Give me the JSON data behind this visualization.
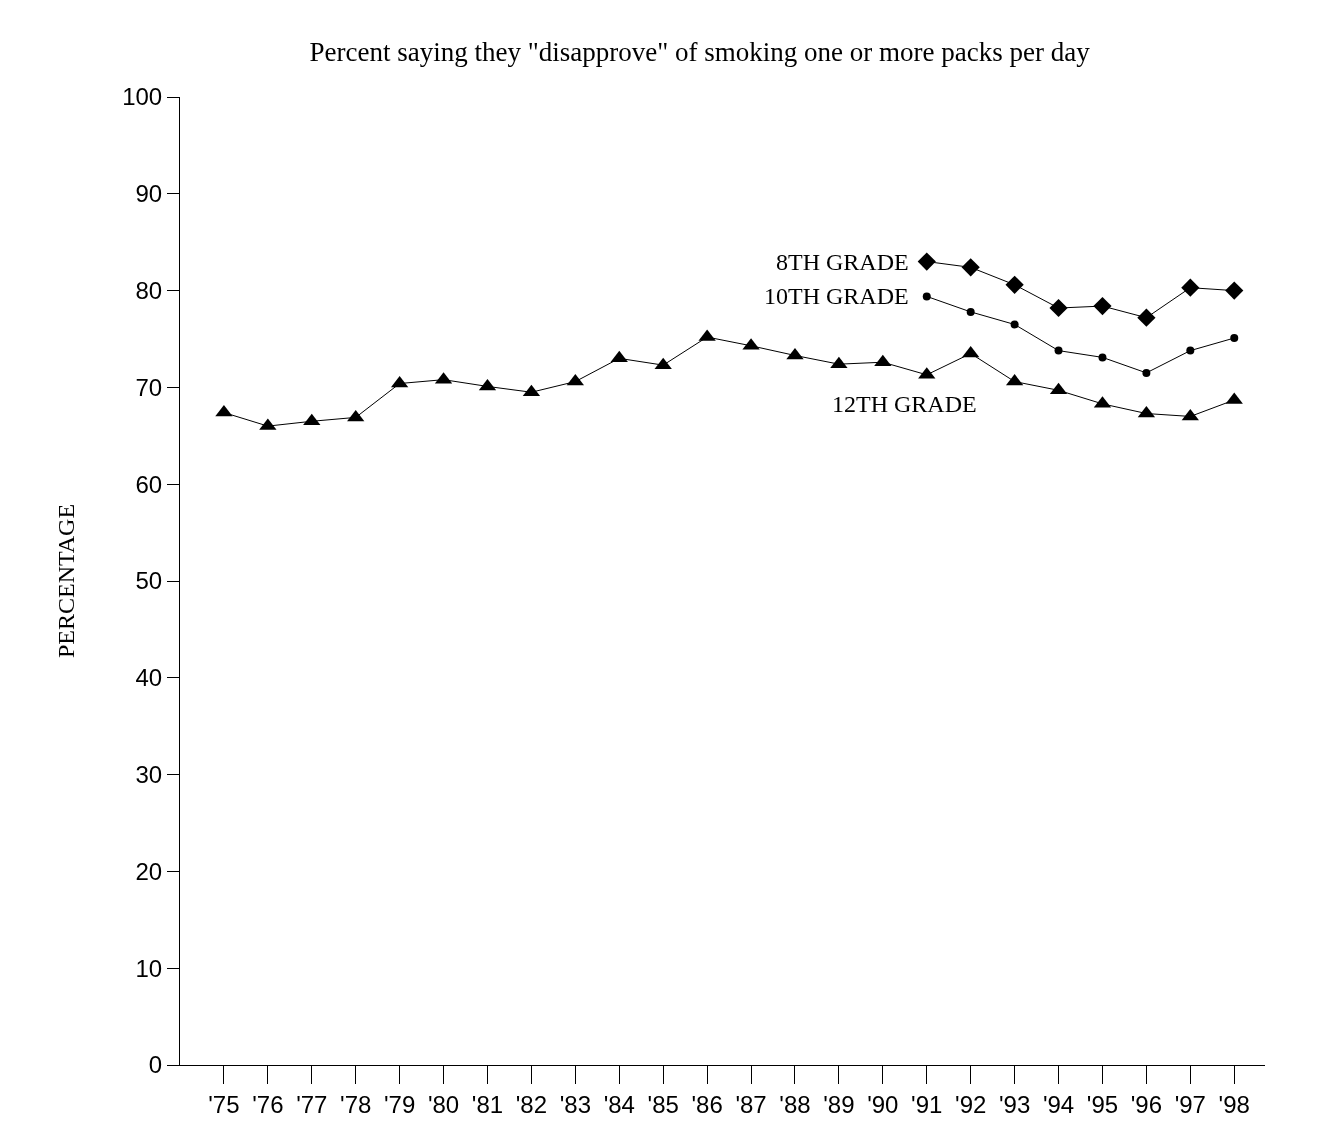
{
  "chart_data": {
    "type": "line",
    "title": "Percent saying they \"disapprove\" of smoking one or more packs per day",
    "ylabel": "PERCENTAGE",
    "categories": [
      "'75",
      "'76",
      "'77",
      "'78",
      "'79",
      "'80",
      "'81",
      "'82",
      "'83",
      "'84",
      "'85",
      "'86",
      "'87",
      "'88",
      "'89",
      "'90",
      "'91",
      "'92",
      "'93",
      "'94",
      "'95",
      "'96",
      "'97",
      "'98"
    ],
    "series": [
      {
        "name": "8TH GRADE",
        "color": "#000000",
        "marker": "diamond",
        "values": [
          null,
          null,
          null,
          null,
          null,
          null,
          null,
          null,
          null,
          null,
          null,
          null,
          null,
          null,
          null,
          null,
          83.0,
          82.4,
          80.6,
          78.2,
          78.4,
          77.2,
          80.3,
          80.0
        ]
      },
      {
        "name": "10TH GRADE",
        "color": "#000000",
        "marker": "circle",
        "values": [
          null,
          null,
          null,
          null,
          null,
          null,
          null,
          null,
          null,
          null,
          null,
          null,
          null,
          null,
          null,
          null,
          79.4,
          77.8,
          76.5,
          73.8,
          73.1,
          71.5,
          73.8,
          75.1
        ]
      },
      {
        "name": "12TH GRADE",
        "color": "#000000",
        "marker": "triangle",
        "values": [
          67.4,
          66.0,
          66.5,
          66.9,
          70.4,
          70.8,
          70.1,
          69.5,
          70.6,
          73.0,
          72.3,
          75.2,
          74.3,
          73.3,
          72.4,
          72.6,
          71.3,
          73.5,
          70.6,
          69.7,
          68.3,
          67.3,
          67.0,
          68.7
        ]
      }
    ],
    "ylim": [
      0,
      100
    ],
    "yticks": [
      0,
      10,
      20,
      30,
      40,
      50,
      60,
      70,
      80,
      90,
      100
    ],
    "legend": false,
    "line_style": "solid"
  }
}
